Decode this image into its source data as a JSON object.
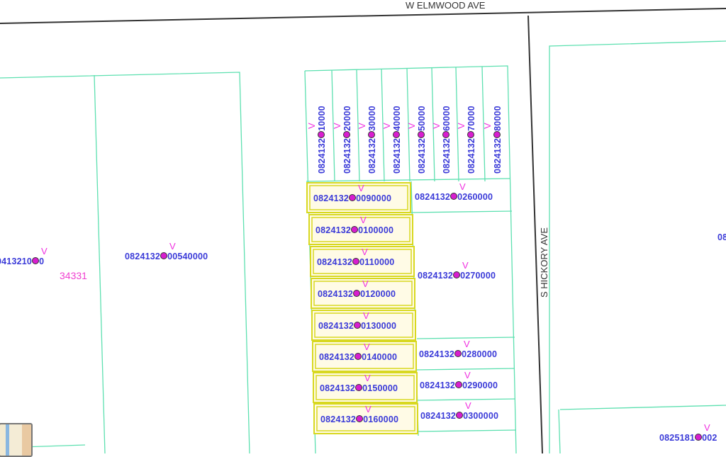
{
  "roads": {
    "top": "W ELMWOOD AVE",
    "right": "S HICKORY AVE"
  },
  "parcels_vertical": [
    {
      "left": "0824132",
      "right": "10000"
    },
    {
      "left": "0824132",
      "right": "20000"
    },
    {
      "left": "0824132",
      "right": "30000"
    },
    {
      "left": "0824132",
      "right": "40000"
    },
    {
      "left": "0824132",
      "right": "50000"
    },
    {
      "left": "0824132",
      "right": "60000"
    },
    {
      "left": "0824132",
      "right": "70000"
    },
    {
      "left": "0824132",
      "right": "80000"
    }
  ],
  "parcels_selected": [
    {
      "left": "0824132",
      "right": "0090000"
    },
    {
      "left": "0824132",
      "right": "0100000"
    },
    {
      "left": "0824132",
      "right": "0110000"
    },
    {
      "left": "0824132",
      "right": "0120000"
    },
    {
      "left": "0824132",
      "right": "0130000"
    },
    {
      "left": "0824132",
      "right": "0140000"
    },
    {
      "left": "0824132",
      "right": "0150000"
    },
    {
      "left": "0824132",
      "right": "0160000"
    }
  ],
  "parcels_right": [
    {
      "left": "0824132",
      "right": "0260000"
    },
    {
      "left": "0824132",
      "right": "0270000"
    },
    {
      "left": "0824132",
      "right": "0280000"
    },
    {
      "left": "0824132",
      "right": "0290000"
    },
    {
      "left": "0824132",
      "right": "0300000"
    }
  ],
  "parcels_other": [
    {
      "left": "0824132",
      "right": "00540000"
    },
    {
      "left": "0413210",
      "right": "0"
    },
    {
      "left": "0825181",
      "right": "002"
    }
  ],
  "partial_label_right_edge": "08",
  "overlay_number": "34331",
  "marker_symbol": "V",
  "colors": {
    "parcel_line": "#5de0b0",
    "selection": "#e0e020",
    "label": "#3a3ad8",
    "marker": "#d81ecf",
    "road": "#333333"
  },
  "overview_map_icon": "overview-map-thumbnail"
}
